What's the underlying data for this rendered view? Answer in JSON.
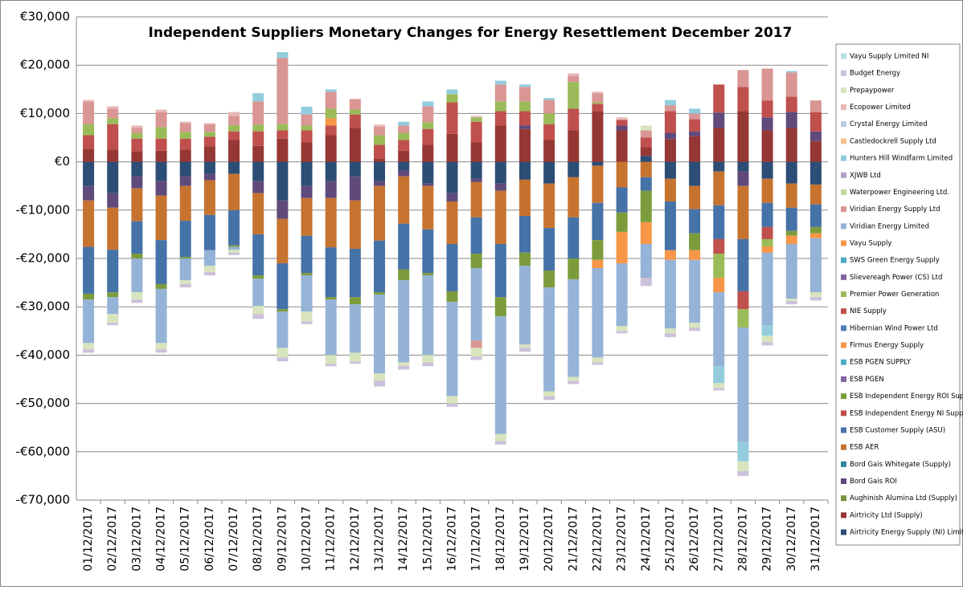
{
  "chart_data": {
    "type": "stacked_bar",
    "title": "Independent Suppliers Monetary Changes  for Energy Resettlement December 2017",
    "categories": [
      "01/12/2017",
      "02/12/2017",
      "03/12/2017",
      "04/12/2017",
      "05/12/2017",
      "06/12/2017",
      "07/12/2017",
      "08/12/2017",
      "09/12/2017",
      "10/12/2017",
      "11/12/2017",
      "12/12/2017",
      "13/12/2017",
      "14/12/2017",
      "15/12/2017",
      "16/12/2017",
      "17/12/2017",
      "18/12/2017",
      "19/12/2017",
      "20/12/2017",
      "21/12/2017",
      "22/12/2017",
      "23/12/2017",
      "24/12/2017",
      "25/12/2017",
      "26/12/2017",
      "27/12/2017",
      "28/12/2017",
      "29/12/2017",
      "30/12/2017",
      "31/12/2017"
    ],
    "ylim": [
      -70000,
      30000
    ],
    "yticks": [
      {
        "value": -70000,
        "label": "-€70,000"
      },
      {
        "value": -60000,
        "label": "-€60,000"
      },
      {
        "value": -50000,
        "label": "-€50,000"
      },
      {
        "value": -40000,
        "label": "-€40,000"
      },
      {
        "value": -30000,
        "label": "-€30,000"
      },
      {
        "value": -20000,
        "label": "-€20,000"
      },
      {
        "value": -10000,
        "label": "-€10,000"
      },
      {
        "value": 0,
        "label": "€0"
      },
      {
        "value": 10000,
        "label": "€10,000"
      },
      {
        "value": 20000,
        "label": "€20,000"
      },
      {
        "value": 30000,
        "label": "€30,000"
      }
    ],
    "grid": true,
    "legend": "right",
    "series": [
      {
        "name": "Airtricity Energy Supply (NI) Limited",
        "color": "#2c4d75",
        "values": [
          -5000,
          -6500,
          -3000,
          -4000,
          -3000,
          -2500,
          -2500,
          -4000,
          -8000,
          -5000,
          -4000,
          -3000,
          -4000,
          -1800,
          -4500,
          -6500,
          -3500,
          -4500,
          -3700,
          -4500,
          -3200,
          -800,
          0,
          1200,
          -3500,
          -5000,
          -2000,
          -2000,
          -3500,
          -4500,
          -4700
        ]
      },
      {
        "name": "Airtricity Ltd (Supply)",
        "color": "#953735",
        "values": [
          2700,
          2500,
          2200,
          2300,
          2500,
          3200,
          4500,
          3300,
          4800,
          4000,
          5500,
          7000,
          700,
          2300,
          3500,
          5800,
          4000,
          7500,
          6800,
          4500,
          6500,
          10500,
          6500,
          1800,
          4700,
          5300,
          7000,
          10500,
          6500,
          7000,
          4300
        ]
      },
      {
        "name": "Aughinish Alumina Ltd (Supply)",
        "color": "#77933c",
        "values": [
          0,
          0,
          0,
          0,
          0,
          0,
          0,
          0,
          0,
          0,
          0,
          0,
          0,
          0,
          0,
          0,
          0,
          0,
          0,
          0,
          0,
          0,
          0,
          0,
          0,
          0,
          0,
          0,
          0,
          0,
          0
        ]
      },
      {
        "name": "Bord Gais ROI",
        "color": "#604a7b",
        "values": [
          -3000,
          -3000,
          -2500,
          -3000,
          -2000,
          -1300,
          0,
          -2500,
          -3800,
          -2500,
          -3500,
          -5000,
          -1000,
          -1200,
          -500,
          -1700,
          -700,
          -1500,
          700,
          0,
          0,
          0,
          1000,
          0,
          1300,
          1000,
          3200,
          -3000,
          2700,
          3300,
          2000
        ]
      },
      {
        "name": "Bord Gais Whitegate (Supply)",
        "color": "#31859c",
        "values": [
          0,
          0,
          0,
          0,
          0,
          0,
          0,
          0,
          0,
          0,
          0,
          0,
          0,
          0,
          0,
          0,
          0,
          0,
          0,
          0,
          0,
          0,
          0,
          0,
          0,
          0,
          0,
          0,
          0,
          0,
          0
        ]
      },
      {
        "name": "ESB AER",
        "color": "#c77330",
        "values": [
          -9600,
          -8700,
          -6800,
          -9200,
          -7200,
          -7200,
          -7500,
          -8500,
          -9200,
          -7800,
          -10200,
          -10000,
          -11300,
          -9800,
          -9000,
          -8800,
          -7300,
          -11000,
          -7500,
          -9200,
          -8300,
          -7700,
          -5300,
          -3200,
          -4700,
          -4800,
          -7000,
          -11000,
          -5000,
          -5000,
          -4100
        ]
      },
      {
        "name": "ESB Customer Supply (ASU)",
        "color": "#4572a7",
        "values": [
          -9700,
          -8800,
          -6700,
          -9100,
          -7500,
          -7300,
          -7300,
          -8500,
          -9500,
          -7700,
          -10300,
          -10000,
          -10700,
          -9500,
          -9000,
          -9800,
          -7500,
          -11000,
          -7600,
          -8800,
          -8500,
          -7700,
          -5200,
          -2800,
          -10100,
          -5000,
          -7000,
          -10800,
          -5000,
          -4800,
          -4700
        ]
      },
      {
        "name": "ESB Independent Energy NI Supply",
        "color": "#c0504d",
        "values": [
          2800,
          5300,
          2600,
          2500,
          2300,
          2000,
          1800,
          3000,
          1700,
          2500,
          2000,
          2800,
          2800,
          2200,
          3300,
          6500,
          4300,
          3000,
          3000,
          3300,
          4500,
          1500,
          1200,
          2000,
          4500,
          2500,
          5800,
          5000,
          3500,
          3200,
          4000
        ]
      },
      {
        "name": "ESB Independent Energy ROI Supply",
        "color": "#7c9c3c",
        "values": [
          -1200,
          -1000,
          -1000,
          -1000,
          -300,
          0,
          -300,
          -700,
          -500,
          -500,
          -500,
          -1500,
          -500,
          -2200,
          -500,
          -2200,
          -3000,
          -4000,
          -2700,
          -3500,
          -4300,
          -4100,
          -4000,
          -6500,
          0,
          -3500,
          0,
          0,
          0,
          -1000,
          -1300
        ]
      },
      {
        "name": "ESB PGEN",
        "color": "#8064a2",
        "values": [
          0,
          0,
          0,
          0,
          0,
          0,
          0,
          0,
          0,
          0,
          0,
          0,
          0,
          0,
          0,
          0,
          0,
          0,
          0,
          0,
          0,
          0,
          0,
          0,
          0,
          0,
          0,
          0,
          0,
          0,
          0
        ]
      },
      {
        "name": "ESB PGEN SUPPLY",
        "color": "#4bacc6",
        "values": [
          0,
          0,
          0,
          0,
          0,
          0,
          0,
          0,
          0,
          0,
          0,
          0,
          0,
          0,
          0,
          0,
          0,
          0,
          0,
          0,
          0,
          0,
          0,
          0,
          0,
          0,
          0,
          0,
          0,
          0,
          0
        ]
      },
      {
        "name": "Firmus Energy Supply",
        "color": "#f79646",
        "values": [
          0,
          0,
          0,
          0,
          0,
          0,
          0,
          0,
          0,
          0,
          1500,
          0,
          0,
          0,
          0,
          0,
          0,
          0,
          0,
          0,
          0,
          -1700,
          0,
          0,
          -2000,
          -2000,
          0,
          0,
          0,
          -1700,
          -1000
        ]
      },
      {
        "name": "Hibernian Wind Power Ltd",
        "color": "#4f81bd",
        "values": [
          0,
          0,
          0,
          0,
          0,
          0,
          0,
          0,
          0,
          0,
          0,
          0,
          0,
          0,
          0,
          0,
          0,
          0,
          0,
          0,
          0,
          0,
          0,
          0,
          0,
          0,
          0,
          0,
          0,
          0,
          0
        ]
      },
      {
        "name": "NIE Supply",
        "color": "#c0504d",
        "values": [
          0,
          0,
          0,
          0,
          0,
          0,
          0,
          0,
          0,
          0,
          0,
          0,
          0,
          0,
          0,
          0,
          0,
          0,
          0,
          0,
          0,
          0,
          0,
          0,
          0,
          0,
          -3000,
          -3700,
          -2500,
          0,
          0
        ]
      },
      {
        "name": "Premier Power Generation",
        "color": "#9bbb59",
        "values": [
          2300,
          1200,
          1200,
          2400,
          1400,
          1000,
          1300,
          1400,
          1300,
          1000,
          2000,
          1000,
          2000,
          1500,
          1400,
          1700,
          900,
          2000,
          2000,
          2200,
          5500,
          300,
          0,
          0,
          0,
          0,
          -5000,
          -3800,
          -1500,
          0,
          0
        ]
      },
      {
        "name": "Slievereagh Power (CS) Ltd",
        "color": "#8064a2",
        "values": [
          0,
          0,
          0,
          0,
          0,
          0,
          0,
          0,
          0,
          0,
          0,
          0,
          0,
          0,
          0,
          0,
          0,
          0,
          0,
          0,
          0,
          0,
          0,
          0,
          0,
          0,
          0,
          0,
          0,
          0,
          0
        ]
      },
      {
        "name": "SWS Green Energy Supply",
        "color": "#4bacc6",
        "values": [
          0,
          0,
          0,
          0,
          0,
          0,
          0,
          0,
          0,
          0,
          0,
          0,
          0,
          0,
          0,
          0,
          0,
          0,
          0,
          0,
          0,
          0,
          0,
          0,
          0,
          0,
          0,
          0,
          0,
          0,
          0
        ]
      },
      {
        "name": "Vayu Supply",
        "color": "#f79646",
        "values": [
          0,
          0,
          0,
          0,
          0,
          0,
          0,
          0,
          0,
          0,
          0,
          0,
          0,
          0,
          0,
          0,
          0,
          0,
          0,
          0,
          0,
          0,
          -6500,
          -4500,
          0,
          0,
          -3000,
          0,
          -1300,
          0,
          0
        ]
      },
      {
        "name": "Viridian Energy Limited",
        "color": "#95b3d7",
        "values": [
          -9000,
          -3500,
          -7000,
          -11200,
          -4500,
          -3200,
          -600,
          -5600,
          -7500,
          -7500,
          -11500,
          -10000,
          -16300,
          -17000,
          -16500,
          -19500,
          -15000,
          -24300,
          -16300,
          -21500,
          -20200,
          -18500,
          -13000,
          -7000,
          -14200,
          -13000,
          -15300,
          -23700,
          -15000,
          -11300,
          -11200
        ]
      },
      {
        "name": "Viridian Energy Supply Ltd",
        "color": "#d99694",
        "values": [
          4700,
          2000,
          1000,
          3100,
          1800,
          1600,
          1900,
          4800,
          13700,
          2300,
          3500,
          2200,
          1800,
          1500,
          3300,
          0,
          -1500,
          3500,
          3000,
          2800,
          1300,
          1900,
          0,
          1500,
          1200,
          1200,
          0,
          3500,
          6600,
          5000,
          2400
        ]
      },
      {
        "name": "Waterpower Engineering Ltd.",
        "color": "#c3d69b",
        "values": [
          0,
          0,
          0,
          0,
          0,
          0,
          0,
          0,
          0,
          0,
          0,
          0,
          0,
          0,
          0,
          0,
          0,
          0,
          0,
          0,
          0,
          0,
          0,
          0,
          0,
          0,
          0,
          0,
          0,
          0,
          0
        ]
      },
      {
        "name": "XJWB Ltd",
        "color": "#b3a2c7",
        "values": [
          0,
          0,
          0,
          0,
          0,
          0,
          0,
          0,
          0,
          0,
          0,
          0,
          0,
          0,
          0,
          0,
          0,
          0,
          0,
          0,
          0,
          0,
          0,
          0,
          0,
          0,
          0,
          0,
          0,
          0,
          0
        ]
      },
      {
        "name": "Hunters Hill Windfarm Limited",
        "color": "#93cddd",
        "values": [
          0,
          0,
          0,
          0,
          0,
          0,
          0,
          1700,
          1200,
          1600,
          500,
          0,
          0,
          800,
          1000,
          1000,
          0,
          800,
          500,
          400,
          0,
          0,
          0,
          0,
          1100,
          1000,
          -3500,
          -4000,
          -2200,
          300,
          0
        ]
      },
      {
        "name": "Castledockrell Supply Ltd",
        "color": "#fac08f",
        "values": [
          0,
          0,
          0,
          0,
          0,
          0,
          0,
          0,
          0,
          0,
          0,
          0,
          0,
          0,
          0,
          0,
          0,
          0,
          0,
          0,
          0,
          0,
          0,
          0,
          0,
          0,
          0,
          0,
          0,
          0,
          0
        ]
      },
      {
        "name": "Crystal Energy Limited",
        "color": "#b9cde5",
        "values": [
          0,
          0,
          0,
          0,
          0,
          0,
          0,
          0,
          0,
          0,
          0,
          0,
          0,
          0,
          0,
          0,
          0,
          0,
          0,
          0,
          0,
          0,
          0,
          0,
          0,
          0,
          0,
          0,
          0,
          0,
          0
        ]
      },
      {
        "name": "Ecopower Limited",
        "color": "#e6b9b8",
        "values": [
          300,
          500,
          500,
          500,
          300,
          200,
          800,
          0,
          0,
          0,
          0,
          0,
          400,
          0,
          0,
          0,
          300,
          0,
          0,
          0,
          500,
          300,
          500,
          0,
          0,
          0,
          0,
          0,
          0,
          0,
          0
        ]
      },
      {
        "name": "Prepaypower",
        "color": "#d7e4bd",
        "values": [
          -1300,
          -1800,
          -1500,
          -1300,
          -800,
          -1300,
          -600,
          -1700,
          -2000,
          -2000,
          -1800,
          -1800,
          -1500,
          -700,
          -1500,
          -1500,
          -1800,
          -1500,
          -700,
          -1000,
          -800,
          -1000,
          -1000,
          1000,
          -1000,
          -1000,
          -1000,
          -2000,
          -1300,
          -500,
          -1000
        ]
      },
      {
        "name": "Budget Energy",
        "color": "#ccc1da",
        "values": [
          -700,
          -500,
          -700,
          -700,
          -700,
          -700,
          -500,
          -1000,
          -800,
          -600,
          -500,
          -500,
          -1200,
          -800,
          -800,
          -700,
          -700,
          -700,
          -800,
          -800,
          -700,
          -500,
          -500,
          -1700,
          -800,
          -700,
          -500,
          -1000,
          -700,
          -700,
          -700
        ]
      },
      {
        "name": "Vayu Supply Limited NI",
        "color": "#b7dee8",
        "values": [
          0,
          0,
          0,
          0,
          0,
          0,
          0,
          0,
          0,
          0,
          0,
          0,
          0,
          0,
          0,
          0,
          0,
          0,
          0,
          0,
          0,
          0,
          0,
          0,
          0,
          0,
          0,
          0,
          0,
          0,
          0
        ]
      }
    ]
  }
}
